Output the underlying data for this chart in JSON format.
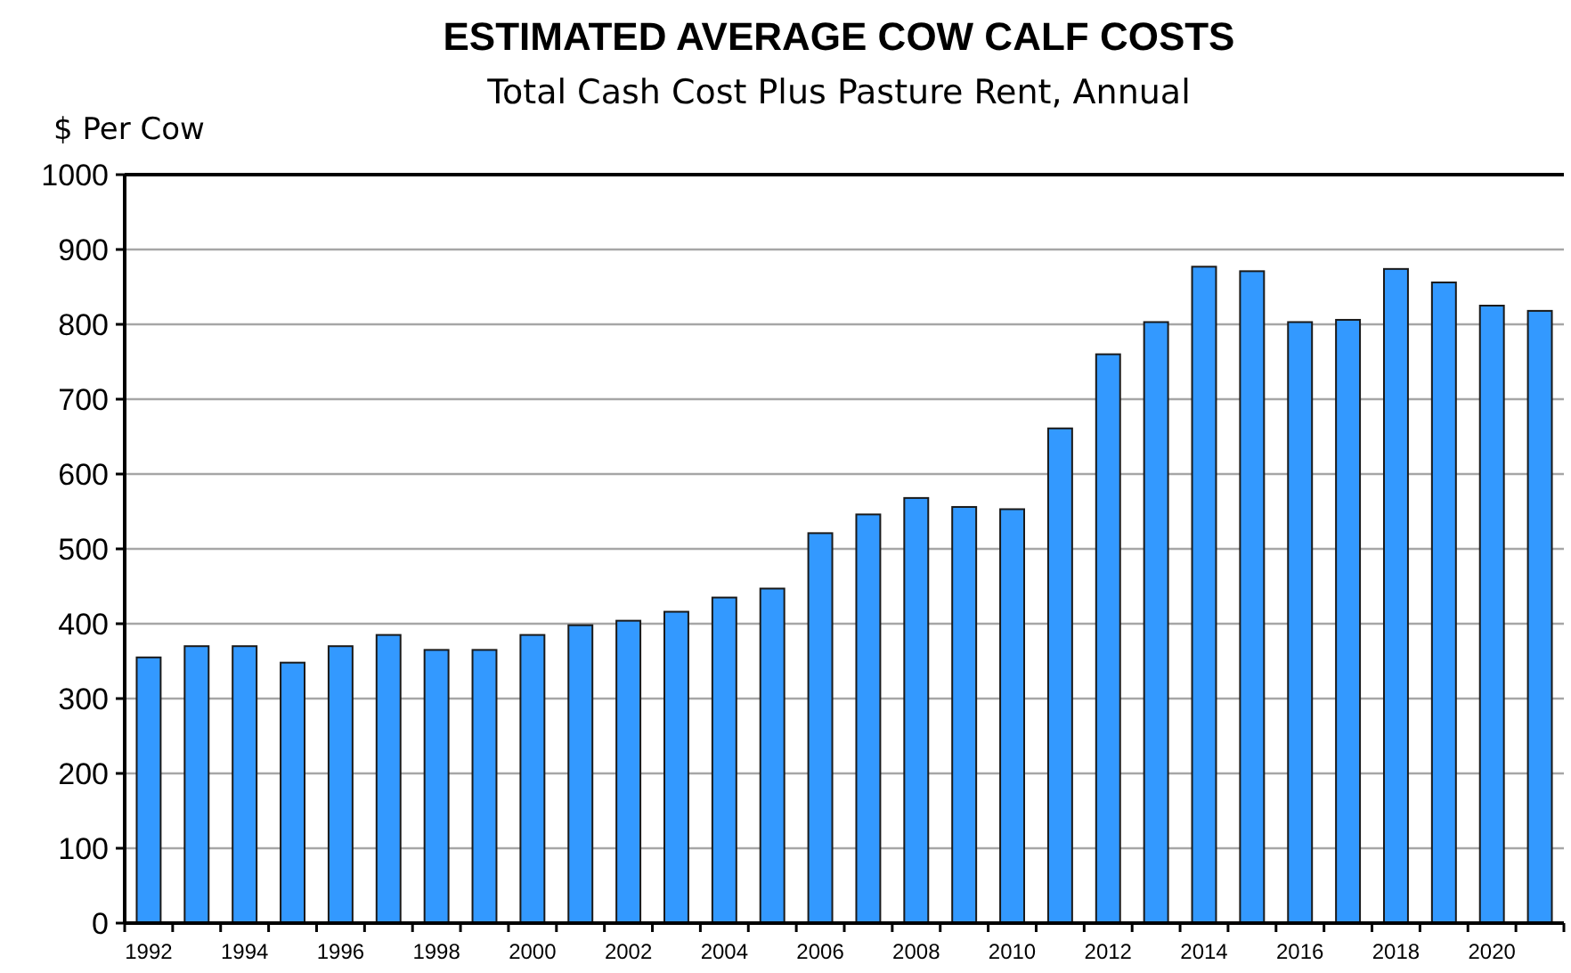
{
  "chart_data": {
    "type": "bar",
    "title": "ESTIMATED AVERAGE COW CALF COSTS",
    "subtitle": "Total Cash Cost Plus Pasture Rent, Annual",
    "ylabel": "$ Per Cow",
    "categories": [
      "1992",
      null,
      "1994",
      null,
      "1996",
      null,
      "1998",
      null,
      "2000",
      null,
      "2002",
      null,
      "2004",
      null,
      "2006",
      null,
      "2008",
      null,
      "2010",
      null,
      "2012",
      null,
      "2014",
      null,
      "2016",
      null,
      "2018",
      null,
      "2020",
      null
    ],
    "values": [
      355,
      370,
      370,
      348,
      370,
      385,
      365,
      365,
      385,
      398,
      404,
      416,
      435,
      447,
      521,
      546,
      568,
      556,
      553,
      661,
      760,
      803,
      877,
      871,
      803,
      806,
      874,
      856,
      825,
      818
    ],
    "color": "#3399ff",
    "ylim": [
      0,
      1000
    ],
    "yticks": [
      0,
      100,
      200,
      300,
      400,
      500,
      600,
      700,
      800,
      900,
      1000
    ],
    "grid": "y"
  }
}
